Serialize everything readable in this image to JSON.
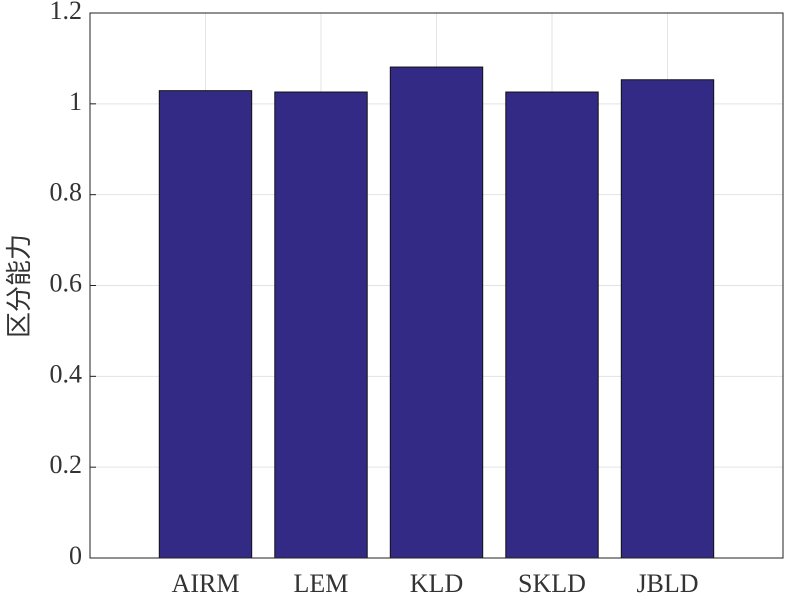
{
  "chart_data": {
    "type": "bar",
    "y_label": "区分能力",
    "categories": [
      "AIRM",
      "LEM",
      "KLD",
      "SKLD",
      "JBLD"
    ],
    "values": [
      1.029,
      1.026,
      1.081,
      1.026,
      1.053
    ],
    "color": "#332a86",
    "ylim": [
      0,
      1.2
    ],
    "yticks": [
      0,
      0.2,
      0.4,
      0.6,
      0.8,
      1,
      1.2
    ],
    "grid": true
  }
}
